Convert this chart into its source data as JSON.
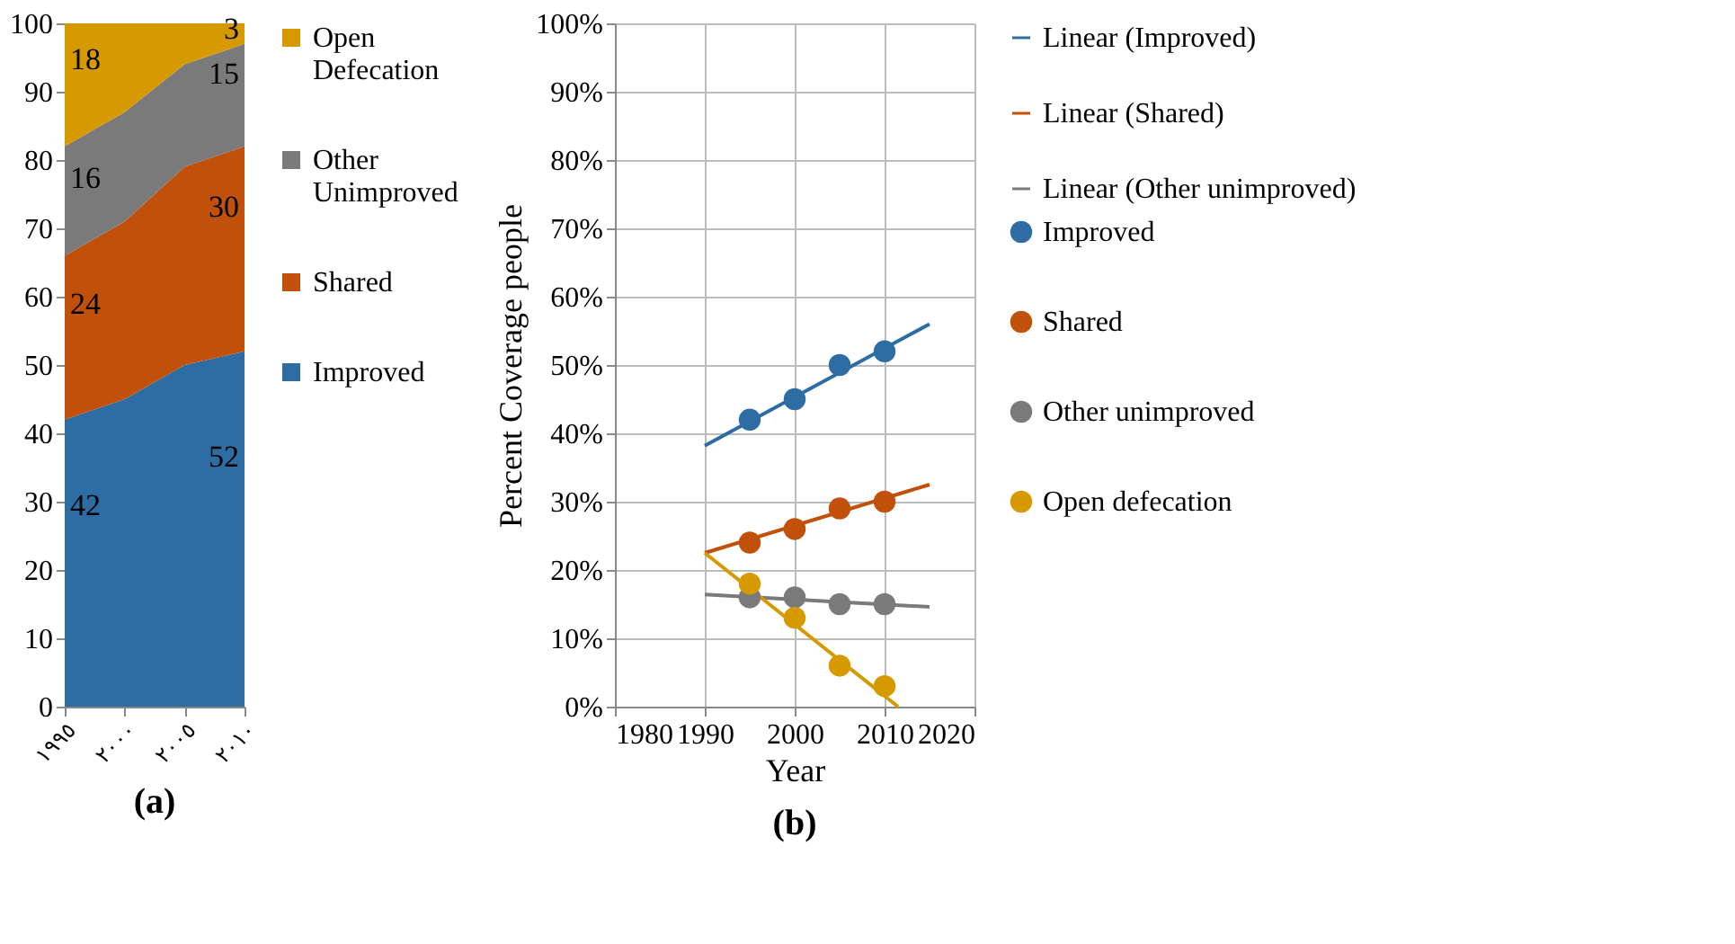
{
  "chart_data": [
    {
      "type": "area",
      "title": "(a)",
      "stacked": true,
      "legend": "right",
      "grid": false,
      "categories": [
        "١٩٩٥",
        "٢٠٠٠",
        "٢٠٠٥",
        "٢٠١٠"
      ],
      "ylim": [
        0,
        100
      ],
      "yticks": [
        0,
        10,
        20,
        30,
        40,
        50,
        60,
        70,
        80,
        90,
        100
      ],
      "series": [
        {
          "name": "Improved",
          "color": "#2e6ca4",
          "values": [
            42,
            45,
            50,
            52
          ],
          "value_labels": [
            "42",
            null,
            null,
            "52"
          ]
        },
        {
          "name": "Shared",
          "color": "#c0500a",
          "values": [
            24,
            26,
            29,
            30
          ],
          "value_labels": [
            "24",
            null,
            null,
            "30"
          ]
        },
        {
          "name": "Other Unimproved",
          "color": "#7a7a7a",
          "values": [
            16,
            16,
            15,
            15
          ],
          "value_labels": [
            "16",
            null,
            null,
            "15"
          ]
        },
        {
          "name": "Open Defecation",
          "color": "#d69a00",
          "values": [
            18,
            13,
            6,
            3
          ],
          "value_labels": [
            "18",
            null,
            null,
            "3"
          ]
        }
      ]
    },
    {
      "type": "scatter",
      "title": "(b)",
      "xlabel": "Year",
      "ylabel": "Percent Coverage people",
      "legend": "right",
      "grid": true,
      "marker": "circle",
      "xlim": [
        1980,
        2020
      ],
      "xticks": [
        1980,
        1990,
        2000,
        2010,
        2020
      ],
      "ylim": [
        0,
        100
      ],
      "yticks": [
        {
          "value": 0,
          "label": "0%"
        },
        {
          "value": 10,
          "label": "10%"
        },
        {
          "value": 20,
          "label": "20%"
        },
        {
          "value": 30,
          "label": "30%"
        },
        {
          "value": 40,
          "label": "40%"
        },
        {
          "value": 50,
          "label": "50%"
        },
        {
          "value": 60,
          "label": "60%"
        },
        {
          "value": 70,
          "label": "70%"
        },
        {
          "value": 80,
          "label": "80%"
        },
        {
          "value": 90,
          "label": "90%"
        },
        {
          "value": 100,
          "label": "100%"
        }
      ],
      "x": [
        1995,
        2000,
        2005,
        2010
      ],
      "series": [
        {
          "name": "Improved",
          "color": "#2e6ca4",
          "values": [
            42,
            45,
            50,
            52
          ]
        },
        {
          "name": "Shared",
          "color": "#c0500a",
          "values": [
            24,
            26,
            29,
            30
          ]
        },
        {
          "name": "Other unimproved",
          "color": "#7a7a7a",
          "values": [
            16,
            16,
            15,
            15
          ]
        },
        {
          "name": "Open defecation",
          "color": "#d69a00",
          "values": [
            18,
            13,
            6,
            3
          ]
        },
        {
          "type": "line",
          "marker": "none",
          "name": "Linear (Improved)",
          "color": "#2e6ca4",
          "x": [
            1990,
            2015
          ],
          "values": [
            38.2,
            56
          ]
        },
        {
          "type": "line",
          "marker": "none",
          "name": "Linear (Shared)",
          "color": "#c0500a",
          "x": [
            1990,
            2015
          ],
          "values": [
            22.5,
            32.5
          ]
        },
        {
          "type": "line",
          "marker": "none",
          "name": "Linear (Other unimproved)",
          "color": "#7a7a7a",
          "x": [
            1990,
            2015
          ],
          "values": [
            16.4,
            14.6
          ]
        },
        {
          "type": "line",
          "marker": "none",
          "color": "#d69a00",
          "x": [
            1990,
            2011.5
          ],
          "values": [
            22.5,
            0
          ]
        }
      ]
    }
  ]
}
